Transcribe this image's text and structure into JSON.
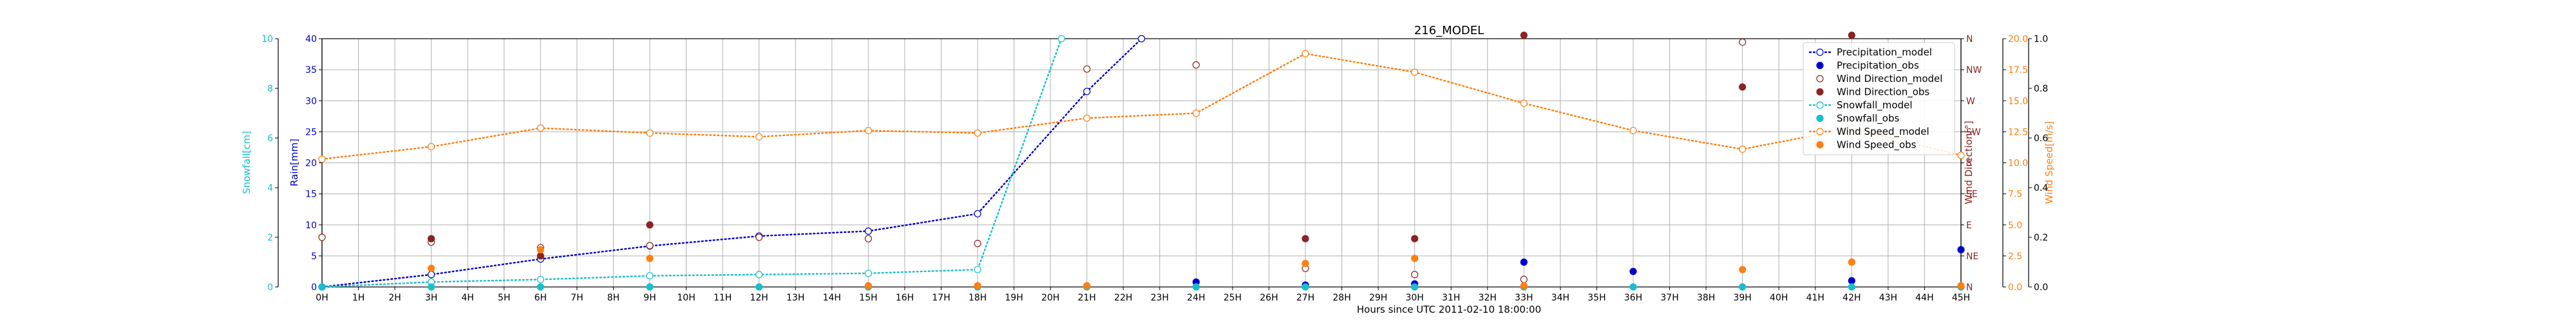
{
  "chart_data": {
    "type": "line",
    "title": "216_MODEL",
    "xlabel": "Hours since UTC 2011-02-10 18:00:00",
    "x_ticks": [
      "0H",
      "1H",
      "2H",
      "3H",
      "4H",
      "5H",
      "6H",
      "7H",
      "8H",
      "9H",
      "10H",
      "11H",
      "12H",
      "13H",
      "14H",
      "15H",
      "16H",
      "17H",
      "18H",
      "19H",
      "20H",
      "21H",
      "22H",
      "23H",
      "24H",
      "25H",
      "26H",
      "27H",
      "28H",
      "29H",
      "30H",
      "31H",
      "32H",
      "33H",
      "34H",
      "35H",
      "36H",
      "37H",
      "38H",
      "39H",
      "40H",
      "41H",
      "42H",
      "43H",
      "44H",
      "45H"
    ],
    "xlim": [
      0,
      45
    ],
    "grid": true,
    "legend_position": "top-right",
    "axes": {
      "snowfall": {
        "label": "Snowfall[cm]",
        "ylim": [
          0,
          10
        ],
        "ticks": [
          "0",
          "2",
          "4",
          "6",
          "8",
          "10"
        ],
        "color": "#17becf"
      },
      "rain": {
        "label": "Rain[mm]",
        "ylim": [
          0,
          40
        ],
        "ticks": [
          "0",
          "5",
          "10",
          "15",
          "20",
          "25",
          "30",
          "35",
          "40"
        ],
        "color": "#0000cd"
      },
      "wind_direction": {
        "label": "Wind Direction[°]",
        "ylim": [
          0,
          360
        ],
        "ticks": [
          "N",
          "NE",
          "E",
          "SE",
          "S",
          "SW",
          "W",
          "NW",
          "N"
        ],
        "color": "#8b2323"
      },
      "wind_speed": {
        "label": "Wind Speed[m/s]",
        "ylim": [
          0,
          20
        ],
        "ticks": [
          "0.0",
          "2.5",
          "5.0",
          "7.5",
          "10.0",
          "12.5",
          "15.0",
          "17.5",
          "20.0"
        ],
        "color": "#ff7f0e"
      },
      "outer": {
        "label": "",
        "ylim": [
          0,
          1
        ],
        "ticks": [
          "0.0",
          "0.2",
          "0.4",
          "0.6",
          "0.8",
          "1.0"
        ],
        "color": "#000000"
      }
    },
    "series": [
      {
        "name": "Precipitation_model",
        "axis": "rain",
        "style": "dotted-line-open-circle",
        "color": "#0000cd",
        "x": [
          0,
          3,
          6,
          9,
          12,
          15,
          18,
          21,
          22.5
        ],
        "y": [
          0,
          2,
          4.5,
          6.6,
          8.2,
          9,
          11.8,
          31.5,
          40
        ]
      },
      {
        "name": "Precipitation_obs",
        "axis": "rain",
        "style": "marker",
        "color": "#0000cd",
        "x": [
          24,
          27,
          30,
          33,
          36,
          42,
          45
        ],
        "y": [
          0.8,
          0.3,
          0.5,
          4,
          2.5,
          1,
          6
        ]
      },
      {
        "name": "Wind Direction_model",
        "axis": "wind_direction",
        "style": "open-marker",
        "color": "#8b2323",
        "x": [
          0,
          3,
          6,
          9,
          12,
          15,
          18,
          21,
          24,
          27,
          30,
          33,
          39
        ],
        "y": [
          72,
          65,
          57,
          60,
          72,
          70,
          63,
          316,
          322,
          27,
          18,
          11,
          355
        ]
      },
      {
        "name": "Wind Direction_obs",
        "axis": "wind_direction",
        "style": "marker",
        "color": "#8b2323",
        "x": [
          3,
          6,
          9,
          27,
          30,
          33,
          39,
          42
        ],
        "y": [
          70,
          45,
          90,
          70,
          70,
          365,
          290,
          365
        ]
      },
      {
        "name": "Snowfall_model",
        "axis": "snowfall",
        "style": "dotted-line-open-circle",
        "color": "#17becf",
        "x": [
          0,
          3,
          6,
          9,
          12,
          15,
          18,
          20.3
        ],
        "y": [
          0,
          0.2,
          0.3,
          0.45,
          0.5,
          0.55,
          0.7,
          10
        ]
      },
      {
        "name": "Snowfall_obs",
        "axis": "snowfall",
        "style": "marker",
        "color": "#17becf",
        "x": [
          0,
          3,
          6,
          9,
          12,
          15,
          18,
          21,
          24,
          27,
          30,
          33,
          36,
          39,
          42,
          45
        ],
        "y": [
          0,
          0,
          0,
          0,
          0,
          0,
          0,
          0,
          0,
          0,
          0,
          0,
          0,
          0,
          0,
          0
        ]
      },
      {
        "name": "Wind Speed_model",
        "axis": "wind_speed",
        "style": "dotted-line-open-circle",
        "color": "#ff7f0e",
        "x": [
          0,
          3,
          6,
          9,
          12,
          15,
          18,
          21,
          24,
          27,
          30,
          33,
          36,
          39,
          42,
          45
        ],
        "y": [
          10.3,
          11.3,
          12.8,
          12.4,
          12.1,
          12.6,
          12.4,
          13.6,
          14.0,
          18.8,
          17.3,
          14.8,
          12.6,
          11.1,
          12.8,
          10.6
        ]
      },
      {
        "name": "Wind Speed_obs",
        "axis": "wind_speed",
        "style": "marker",
        "color": "#ff7f0e",
        "x": [
          3,
          6,
          9,
          15,
          18,
          21,
          27,
          30,
          33,
          39,
          42,
          45
        ],
        "y": [
          1.5,
          3,
          2.3,
          0.1,
          0.1,
          0.1,
          1.9,
          2.3,
          0.1,
          1.4,
          2.0,
          0.1
        ]
      }
    ]
  }
}
